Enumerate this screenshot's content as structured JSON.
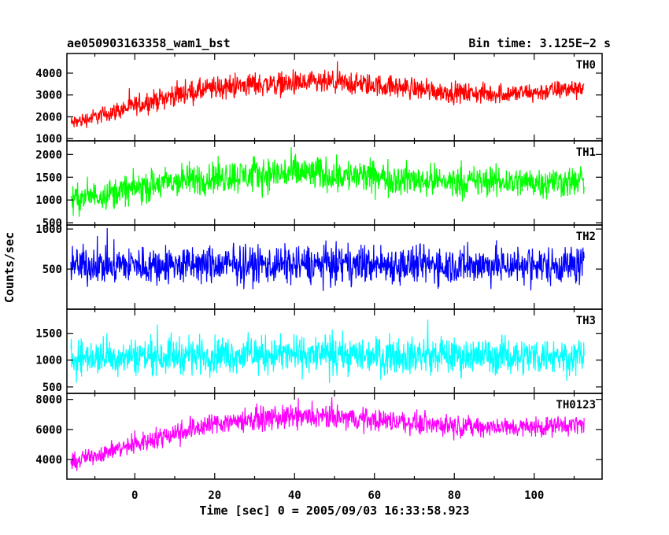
{
  "chart_data": {
    "type": "line",
    "title_left": "ae050903163358_wam1_bst",
    "title_right": "Bin time: 3.125E−2 s",
    "xlabel": "Time [sec] 0 = 2005/09/03 16:33:58.923",
    "ylabel": "Counts/sec",
    "xlim": [
      -17,
      117
    ],
    "x_ticks": [
      0,
      20,
      40,
      60,
      80,
      100
    ],
    "x_range_data": [
      -16,
      112.5
    ],
    "panels": [
      {
        "name": "TH0",
        "color": "#ff0000",
        "ylim": [
          900,
          4900
        ],
        "y_ticks": [
          1000,
          2000,
          3000,
          4000
        ],
        "x": [
          -16,
          -10,
          0,
          10,
          20,
          30,
          40,
          50,
          60,
          70,
          80,
          90,
          100,
          112
        ],
        "mean": [
          1700,
          2000,
          2500,
          3000,
          3300,
          3500,
          3500,
          3550,
          3450,
          3300,
          3100,
          3050,
          3100,
          3350
        ],
        "spread": [
          500,
          550,
          650,
          750,
          800,
          800,
          800,
          800,
          750,
          750,
          700,
          650,
          650,
          650
        ]
      },
      {
        "name": "TH1",
        "color": "#00ff00",
        "ylim": [
          450,
          2300
        ],
        "y_ticks": [
          500,
          1000,
          1500,
          2000
        ],
        "x": [
          -16,
          -10,
          0,
          10,
          20,
          30,
          40,
          50,
          60,
          70,
          80,
          90,
          100,
          112
        ],
        "mean": [
          1000,
          1100,
          1250,
          1400,
          1500,
          1550,
          1600,
          1550,
          1500,
          1450,
          1400,
          1400,
          1400,
          1400
        ],
        "spread": [
          450,
          450,
          500,
          550,
          550,
          550,
          600,
          550,
          550,
          500,
          500,
          500,
          500,
          500
        ]
      },
      {
        "name": "TH2",
        "color": "#0000ff",
        "ylim": [
          0,
          1050
        ],
        "y_ticks": [
          500,
          1000
        ],
        "x": [
          -16,
          0,
          20,
          40,
          60,
          80,
          100,
          112
        ],
        "mean": [
          550,
          550,
          550,
          560,
          560,
          550,
          550,
          550
        ],
        "spread": [
          350,
          350,
          350,
          350,
          350,
          350,
          350,
          350
        ]
      },
      {
        "name": "TH3",
        "color": "#00ffff",
        "ylim": [
          380,
          1950
        ],
        "y_ticks": [
          500,
          1000,
          1500
        ],
        "x": [
          -16,
          0,
          20,
          40,
          60,
          80,
          100,
          112
        ],
        "mean": [
          1050,
          1080,
          1100,
          1100,
          1100,
          1080,
          1080,
          1080
        ],
        "spread": [
          480,
          500,
          500,
          500,
          500,
          500,
          500,
          500
        ]
      },
      {
        "name": "TH0123",
        "color": "#ff00ff",
        "ylim": [
          2700,
          8400
        ],
        "y_ticks": [
          4000,
          6000,
          8000
        ],
        "x": [
          -16,
          -10,
          0,
          10,
          20,
          30,
          40,
          50,
          60,
          70,
          80,
          90,
          100,
          112
        ],
        "mean": [
          3800,
          4300,
          5000,
          5800,
          6400,
          6700,
          6800,
          6800,
          6650,
          6450,
          6250,
          6150,
          6150,
          6350
        ],
        "spread": [
          800,
          850,
          950,
          1100,
          1100,
          1150,
          1150,
          1150,
          1100,
          1050,
          1000,
          950,
          950,
          950
        ]
      }
    ]
  }
}
